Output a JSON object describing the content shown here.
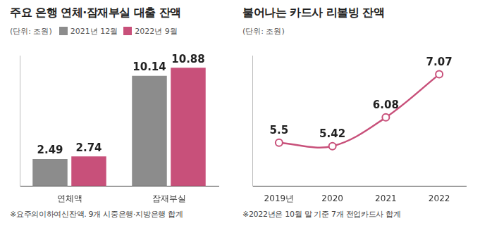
{
  "chart_data": [
    {
      "type": "bar",
      "title": "주요 은행 연체·잠재부실 대출 잔액",
      "subtitle": "(단위: 조원)",
      "categories": [
        "연체액",
        "잠재부실"
      ],
      "series": [
        {
          "name": "2021년 12월",
          "color": "#8c8c8c",
          "values": [
            2.49,
            10.14
          ]
        },
        {
          "name": "2022년 9월",
          "color": "#c8507a",
          "values": [
            2.74,
            10.88
          ]
        }
      ],
      "ylim": [
        0,
        12
      ],
      "grid": false,
      "legend": "top-left",
      "data_labels": true,
      "tick_labels": "x",
      "annotations": [
        "※요주의이하여신잔액. 9개 시중은행·지방은행 합계"
      ]
    },
    {
      "type": "line",
      "title": "불어나는 카드사 리볼빙 잔액",
      "subtitle": "(단위: 조원)",
      "categories": [
        "2019년",
        "2020",
        "2021",
        "2022"
      ],
      "values": [
        5.5,
        5.42,
        6.08,
        7.07
      ],
      "color": "#c8507a",
      "marker": "circle",
      "ylim": [
        4.5,
        7.5
      ],
      "grid": false,
      "data_labels": true,
      "tick_labels": "x",
      "annotations": [
        "※2022년은 10월 말 기준 7개 전업카드사 합계"
      ]
    }
  ]
}
